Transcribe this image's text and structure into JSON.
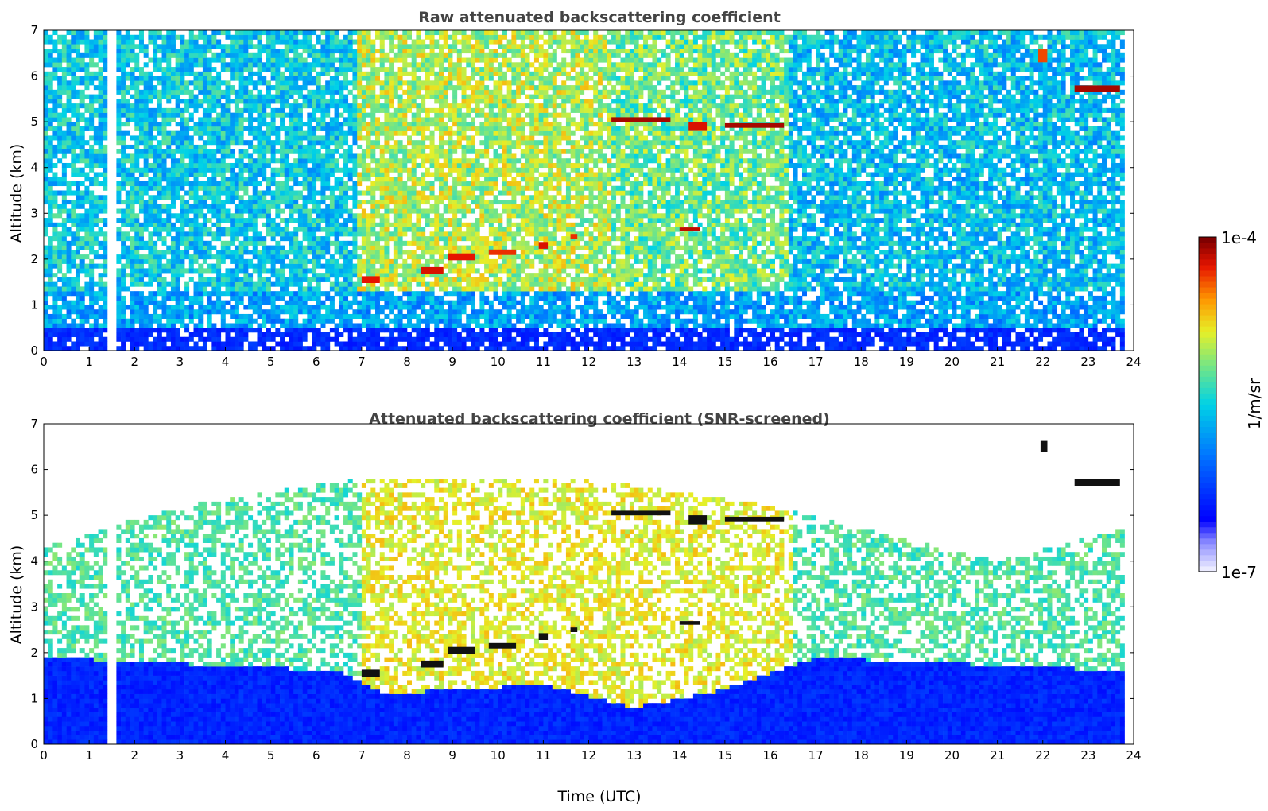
{
  "chart_data": [
    {
      "type": "heatmap",
      "title": "Raw attenuated backscattering coefficient",
      "xlabel": "",
      "ylabel": "Altitude (km)",
      "xlim": [
        0,
        24
      ],
      "ylim": [
        0,
        7
      ],
      "x_ticks": [
        "0",
        "1",
        "2",
        "3",
        "4",
        "5",
        "6",
        "7",
        "8",
        "9",
        "10",
        "11",
        "12",
        "13",
        "14",
        "15",
        "16",
        "17",
        "18",
        "19",
        "20",
        "21",
        "22",
        "23",
        "24"
      ],
      "y_ticks": [
        "0",
        "1",
        "2",
        "3",
        "4",
        "5",
        "6",
        "7"
      ],
      "background_regions": [
        {
          "t0": 0.0,
          "t1": 6.9,
          "level": 0.5
        },
        {
          "t0": 6.9,
          "t1": 12.5,
          "level": 0.68
        },
        {
          "t0": 12.5,
          "t1": 16.4,
          "level": 0.62
        },
        {
          "t0": 16.4,
          "t1": 23.8,
          "level": 0.48
        }
      ],
      "surface_layer": {
        "top_km": 0.5,
        "level": 0.18
      },
      "data_gaps": [
        {
          "t0": 1.45,
          "t1": 1.58
        },
        {
          "t0": 23.8,
          "t1": 24.0
        }
      ],
      "layers": [
        {
          "t0": 7.0,
          "t1": 7.4,
          "alt_km": 1.55,
          "thick_km": 0.15,
          "level": 0.92
        },
        {
          "t0": 8.3,
          "t1": 8.8,
          "alt_km": 1.75,
          "thick_km": 0.15,
          "level": 0.93
        },
        {
          "t0": 8.9,
          "t1": 9.5,
          "alt_km": 2.05,
          "thick_km": 0.15,
          "level": 0.92
        },
        {
          "t0": 9.8,
          "t1": 10.4,
          "alt_km": 2.15,
          "thick_km": 0.12,
          "level": 0.9
        },
        {
          "t0": 10.9,
          "t1": 11.1,
          "alt_km": 2.3,
          "thick_km": 0.15,
          "level": 0.93
        },
        {
          "t0": 11.6,
          "t1": 11.75,
          "alt_km": 2.5,
          "thick_km": 0.1,
          "level": 0.9
        },
        {
          "t0": 12.5,
          "t1": 13.8,
          "alt_km": 5.05,
          "thick_km": 0.1,
          "level": 0.97
        },
        {
          "t0": 14.0,
          "t1": 14.45,
          "alt_km": 2.65,
          "thick_km": 0.08,
          "level": 0.95
        },
        {
          "t0": 14.2,
          "t1": 14.6,
          "alt_km": 4.9,
          "thick_km": 0.2,
          "level": 0.93
        },
        {
          "t0": 15.0,
          "t1": 16.3,
          "alt_km": 4.92,
          "thick_km": 0.1,
          "level": 0.97
        },
        {
          "t0": 21.9,
          "t1": 22.1,
          "alt_km": 6.45,
          "thick_km": 0.3,
          "level": 0.88
        },
        {
          "t0": 22.7,
          "t1": 23.7,
          "alt_km": 5.72,
          "thick_km": 0.15,
          "level": 0.97
        }
      ]
    },
    {
      "type": "heatmap",
      "title": "Attenuated backscattering coefficient (SNR-screened)",
      "xlabel": "Time (UTC)",
      "ylabel": "Altitude (km)",
      "xlim": [
        0,
        24
      ],
      "ylim": [
        0,
        7
      ],
      "x_ticks": [
        "0",
        "1",
        "2",
        "3",
        "4",
        "5",
        "6",
        "7",
        "8",
        "9",
        "10",
        "11",
        "12",
        "13",
        "14",
        "15",
        "16",
        "17",
        "18",
        "19",
        "20",
        "21",
        "22",
        "23",
        "24"
      ],
      "y_ticks": [
        "0",
        "1",
        "2",
        "3",
        "4",
        "5",
        "6",
        "7"
      ],
      "screened_top_km": [
        {
          "t": 0.0,
          "top": 4.3
        },
        {
          "t": 3.0,
          "top": 5.2
        },
        {
          "t": 7.0,
          "top": 5.8
        },
        {
          "t": 12.0,
          "top": 5.8
        },
        {
          "t": 16.0,
          "top": 5.2
        },
        {
          "t": 21.0,
          "top": 4.0
        },
        {
          "t": 23.8,
          "top": 4.7
        }
      ],
      "boundary_layer_top_km": [
        {
          "t": 0.0,
          "top": 1.9
        },
        {
          "t": 6.5,
          "top": 1.6
        },
        {
          "t": 7.5,
          "top": 1.1
        },
        {
          "t": 11.0,
          "top": 1.3
        },
        {
          "t": 13.0,
          "top": 0.8
        },
        {
          "t": 15.0,
          "top": 1.2
        },
        {
          "t": 17.0,
          "top": 1.9
        },
        {
          "t": 23.8,
          "top": 1.6
        }
      ],
      "data_gaps": [
        {
          "t0": 1.45,
          "t1": 1.58
        },
        {
          "t0": 23.8,
          "t1": 24.0
        }
      ],
      "layers": [
        {
          "t0": 7.0,
          "t1": 7.4,
          "alt_km": 1.55,
          "thick_km": 0.15
        },
        {
          "t0": 8.3,
          "t1": 8.8,
          "alt_km": 1.75,
          "thick_km": 0.15
        },
        {
          "t0": 8.9,
          "t1": 9.5,
          "alt_km": 2.05,
          "thick_km": 0.15
        },
        {
          "t0": 9.8,
          "t1": 10.4,
          "alt_km": 2.15,
          "thick_km": 0.12
        },
        {
          "t0": 10.9,
          "t1": 11.1,
          "alt_km": 2.35,
          "thick_km": 0.15
        },
        {
          "t0": 11.6,
          "t1": 11.75,
          "alt_km": 2.5,
          "thick_km": 0.1
        },
        {
          "t0": 12.5,
          "t1": 13.8,
          "alt_km": 5.05,
          "thick_km": 0.1
        },
        {
          "t0": 14.0,
          "t1": 14.45,
          "alt_km": 2.65,
          "thick_km": 0.08
        },
        {
          "t0": 14.2,
          "t1": 14.6,
          "alt_km": 4.9,
          "thick_km": 0.2
        },
        {
          "t0": 15.0,
          "t1": 16.3,
          "alt_km": 4.92,
          "thick_km": 0.1
        },
        {
          "t0": 21.95,
          "t1": 22.1,
          "alt_km": 6.5,
          "thick_km": 0.25
        },
        {
          "t0": 22.7,
          "t1": 23.7,
          "alt_km": 5.72,
          "thick_km": 0.15
        }
      ]
    }
  ],
  "colorbar": {
    "label": "1/m/sr",
    "min_label": "1e-7",
    "max_label": "1e-4",
    "colormap": "jet_with_white_base",
    "scale": "log"
  }
}
